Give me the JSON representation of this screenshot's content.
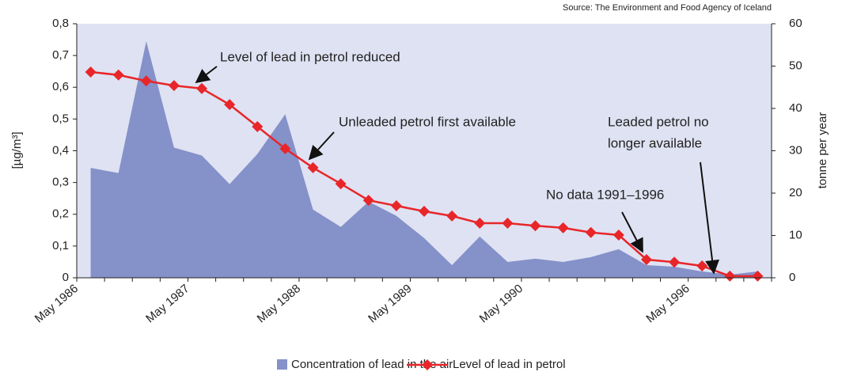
{
  "chart_data": {
    "type": "area-line",
    "source": "Source: The Environment and Food Agency of Iceland",
    "y_label": "[µg/m³]",
    "y2_label": "tonne per year",
    "categories": [
      "May 1986",
      null,
      null,
      null,
      "May 1987",
      null,
      null,
      null,
      "May 1988",
      null,
      null,
      null,
      "May 1989",
      null,
      null,
      null,
      "May 1990",
      null,
      null,
      null,
      null,
      null,
      "May 1996",
      null,
      null
    ],
    "series": [
      {
        "name": "Concentration of lead in the air",
        "kind": "area",
        "color": "#8591c9",
        "values": [
          0.346,
          0.33,
          0.745,
          0.41,
          0.385,
          0.295,
          0.39,
          0.515,
          0.215,
          0.16,
          0.24,
          0.195,
          0.125,
          0.04,
          0.13,
          0.05,
          0.06,
          0.05,
          0.065,
          0.09,
          0.04,
          0.035,
          0.02,
          0.01,
          0.02
        ]
      },
      {
        "name": "Level of lead in petrol",
        "kind": "line",
        "axis": "y2",
        "color": "#e8262a",
        "values": [
          48.6,
          47.9,
          46.5,
          45.4,
          44.7,
          40.9,
          35.7,
          30.5,
          26.0,
          22.2,
          18.3,
          17.0,
          15.7,
          14.6,
          12.9,
          12.9,
          12.3,
          11.8,
          10.7,
          10.1,
          4.3,
          3.7,
          2.8,
          0.4,
          0.4
        ]
      }
    ],
    "ylim": [
      0,
      0.8
    ],
    "yticks": [
      0,
      {
        "value": 0.1,
        "label": "0,1"
      },
      {
        "value": 0.2,
        "label": "0,2"
      },
      {
        "value": 0.3,
        "label": "0,3"
      },
      {
        "value": 0.4,
        "label": "0,4"
      },
      {
        "value": 0.5,
        "label": "0,5"
      },
      {
        "value": 0.6,
        "label": "0,6"
      },
      {
        "value": 0.7,
        "label": "0,7"
      },
      {
        "value": 0.8,
        "label": "0,8"
      }
    ],
    "y2lim": [
      0,
      60
    ],
    "y2ticks": [
      0,
      10,
      20,
      30,
      40,
      50,
      60
    ],
    "annotations": [
      {
        "lines": [
          "Level of lead in petrol reduced"
        ]
      },
      {
        "lines": [
          "Unleaded petrol first available"
        ]
      },
      {
        "lines": [
          "Leaded petrol no",
          "longer available"
        ]
      },
      {
        "lines": [
          "No data 1991–1996"
        ]
      }
    ]
  }
}
